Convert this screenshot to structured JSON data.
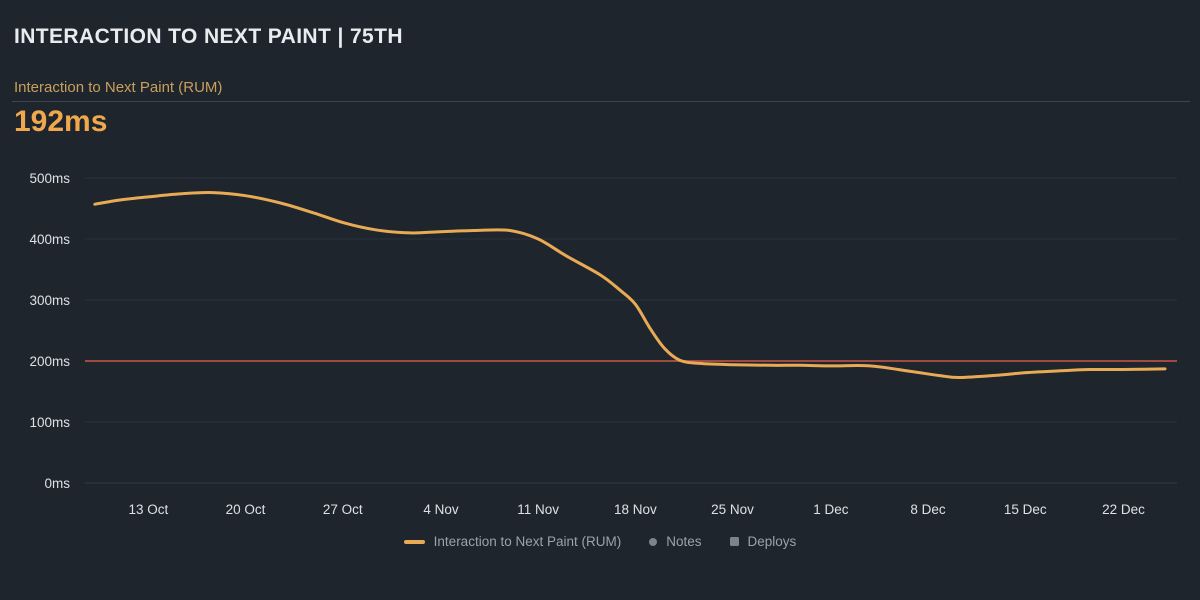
{
  "header": {
    "title": "INTERACTION TO NEXT PAINT | 75TH"
  },
  "metric": {
    "label": "Interaction to Next Paint (RUM)",
    "value": "192ms"
  },
  "colors": {
    "background": "#1e252d",
    "title": "#e9ecef",
    "metric_label": "#c99f5d",
    "metric_value": "#f0a84c",
    "grid_line": "#2a313a",
    "axis_line": "#343c45",
    "tick_label": "#dde1e5",
    "series": "#e9aa55",
    "threshold": "#a04a42",
    "legend_text": "#9aa2ab",
    "legend_muted": "#7c838c"
  },
  "chart_data": {
    "type": "line",
    "title": "Interaction to Next Paint (RUM)",
    "unit": "ms",
    "ylim": [
      0,
      500
    ],
    "grid": true,
    "legend_position": "bottom",
    "y_ticks": [
      {
        "label": "0ms",
        "value": 0
      },
      {
        "label": "100ms",
        "value": 100
      },
      {
        "label": "200ms",
        "value": 200
      },
      {
        "label": "300ms",
        "value": 300
      },
      {
        "label": "400ms",
        "value": 400
      },
      {
        "label": "500ms",
        "value": 500
      }
    ],
    "x_ticks": [
      {
        "label": "13 Oct",
        "pos": 0.058
      },
      {
        "label": "20 Oct",
        "pos": 0.147
      },
      {
        "label": "27 Oct",
        "pos": 0.236
      },
      {
        "label": "4 Nov",
        "pos": 0.326
      },
      {
        "label": "11 Nov",
        "pos": 0.415
      },
      {
        "label": "18 Nov",
        "pos": 0.504
      },
      {
        "label": "25 Nov",
        "pos": 0.593
      },
      {
        "label": "1 Dec",
        "pos": 0.683
      },
      {
        "label": "8 Dec",
        "pos": 0.772
      },
      {
        "label": "15 Dec",
        "pos": 0.861
      },
      {
        "label": "22 Dec",
        "pos": 0.951
      }
    ],
    "threshold": {
      "value": 200
    },
    "series": [
      {
        "name": "Interaction to Next Paint (RUM)",
        "color": "#e9aa55",
        "points": [
          [
            0.009,
            457
          ],
          [
            0.032,
            464
          ],
          [
            0.058,
            469
          ],
          [
            0.087,
            474
          ],
          [
            0.117,
            476
          ],
          [
            0.147,
            471
          ],
          [
            0.179,
            459
          ],
          [
            0.209,
            443
          ],
          [
            0.238,
            426
          ],
          [
            0.266,
            415
          ],
          [
            0.298,
            410
          ],
          [
            0.325,
            412
          ],
          [
            0.357,
            414
          ],
          [
            0.389,
            414
          ],
          [
            0.415,
            400
          ],
          [
            0.441,
            372
          ],
          [
            0.472,
            341
          ],
          [
            0.49,
            316
          ],
          [
            0.504,
            293
          ],
          [
            0.518,
            252
          ],
          [
            0.531,
            220
          ],
          [
            0.545,
            201
          ],
          [
            0.563,
            196
          ],
          [
            0.594,
            194
          ],
          [
            0.628,
            193
          ],
          [
            0.655,
            193
          ],
          [
            0.683,
            192
          ],
          [
            0.719,
            192
          ],
          [
            0.756,
            183
          ],
          [
            0.783,
            176
          ],
          [
            0.801,
            173
          ],
          [
            0.838,
            177
          ],
          [
            0.862,
            181
          ],
          [
            0.893,
            184
          ],
          [
            0.92,
            186
          ],
          [
            0.95,
            186
          ],
          [
            0.989,
            187
          ]
        ]
      }
    ],
    "legend": [
      {
        "label": "Interaction to Next Paint (RUM)",
        "swatch": "line",
        "color": "#e9aa55"
      },
      {
        "label": "Notes",
        "swatch": "circle",
        "color": "#7c838c"
      },
      {
        "label": "Deploys",
        "swatch": "square",
        "color": "#7c838c"
      }
    ]
  }
}
